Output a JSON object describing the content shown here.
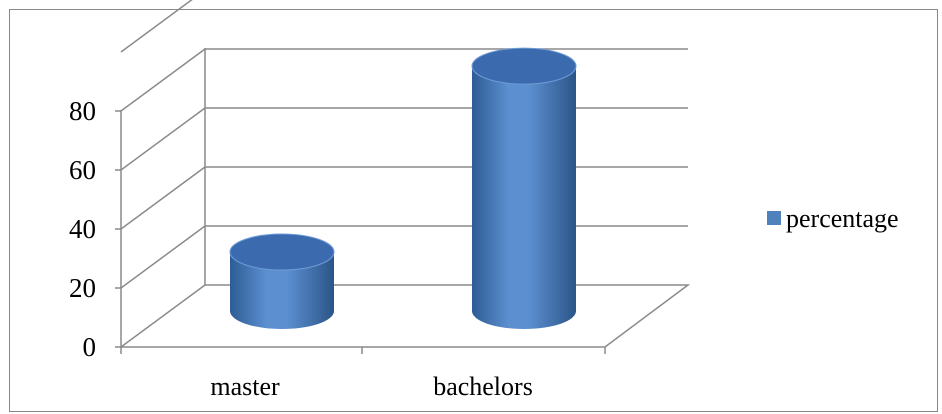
{
  "chart_data": {
    "type": "bar",
    "style": "3d-cylinder",
    "categories": [
      "master",
      "bachelors"
    ],
    "series": [
      {
        "name": "percentage",
        "values": [
          20,
          83
        ],
        "color": "#4F81BD"
      }
    ],
    "yticks": [
      "0",
      "20",
      "40",
      "60",
      "80"
    ],
    "ylim": [
      0,
      100
    ],
    "legend": "right",
    "grid": true
  }
}
